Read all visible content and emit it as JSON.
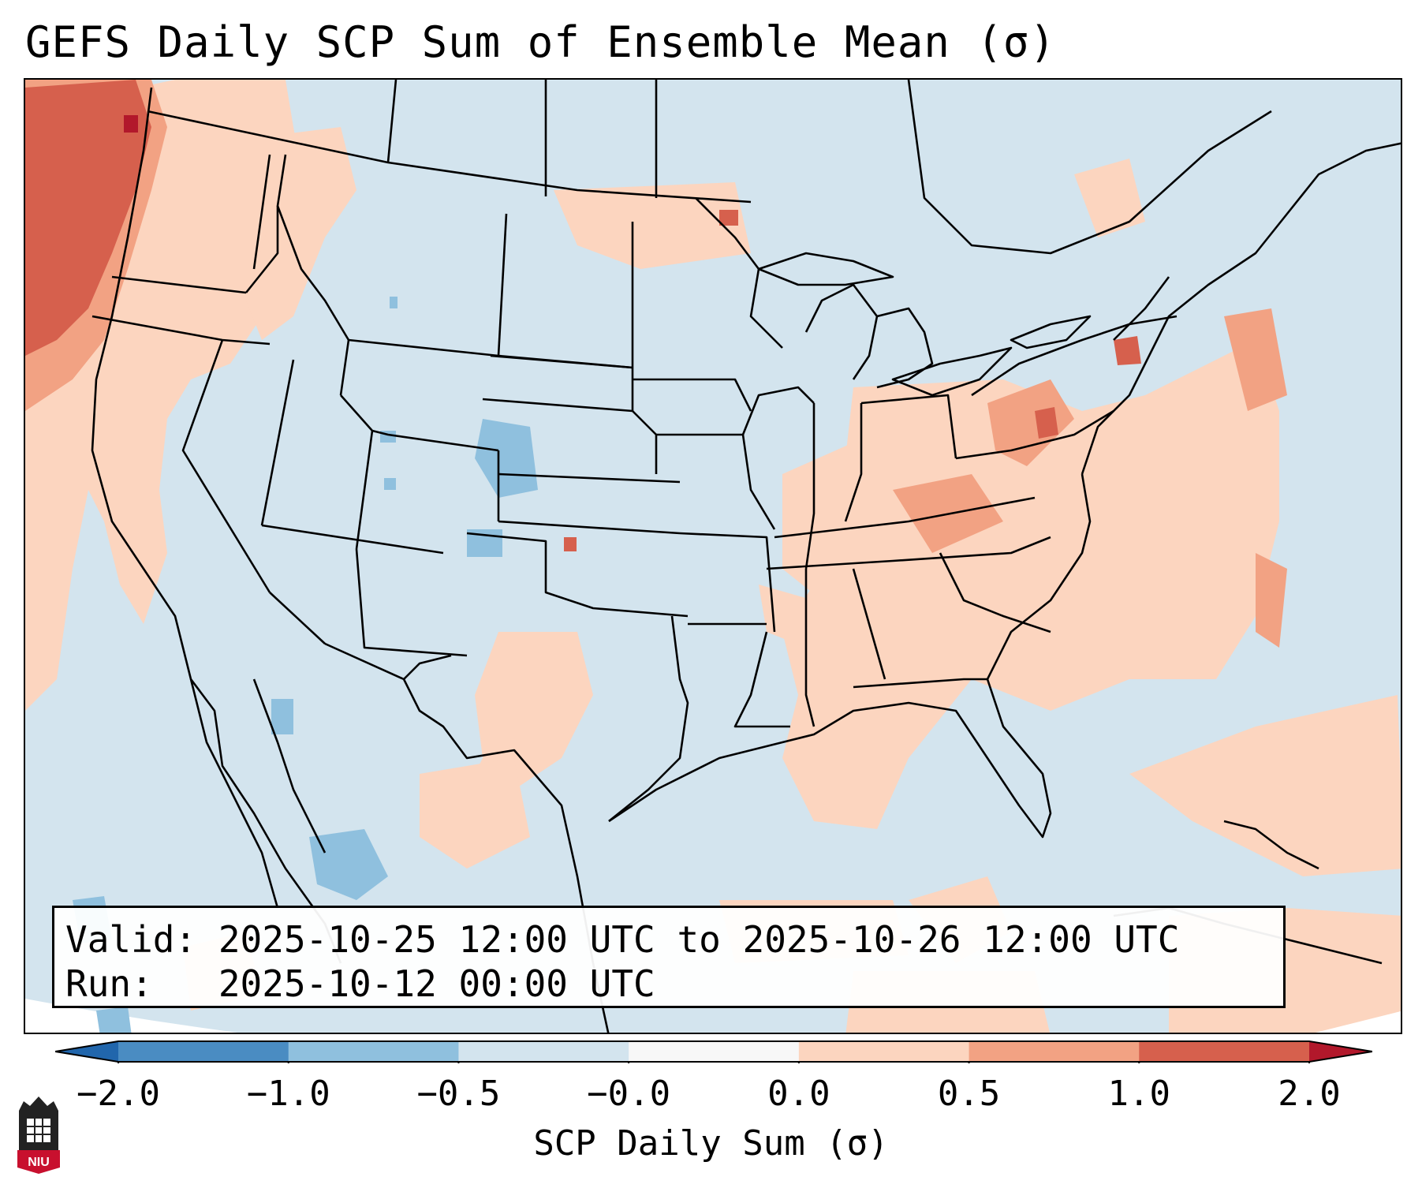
{
  "title": "GEFS Daily SCP Sum of Ensemble Mean (σ)",
  "info": {
    "valid_line": "Valid: 2025-10-25 12:00 UTC to 2025-10-26 12:00 UTC",
    "run_line": "Run:   2025-10-12 00:00 UTC"
  },
  "colorbar": {
    "label": "SCP Daily Sum (σ)",
    "ticks": [
      "−2.0",
      "−1.0",
      "−0.5",
      "−0.0",
      "0.0",
      "0.5",
      "1.0",
      "2.0"
    ],
    "bins": [
      {
        "range": "-2.0 to -1.0",
        "color": "#4a8cc2"
      },
      {
        "range": "-1.0 to -0.5",
        "color": "#8fc0de"
      },
      {
        "range": "-0.5 to -0.0",
        "color": "#d3e4ee"
      },
      {
        "range": "-0.0 to 0.0",
        "color": "#f7f7f7"
      },
      {
        "range": "0.0 to 0.5",
        "color": "#fcd5bf"
      },
      {
        "range": "0.5 to 1.0",
        "color": "#f2a283"
      },
      {
        "range": "1.0 to 2.0",
        "color": "#d6604d"
      }
    ],
    "under_color": "#2166ac",
    "over_color": "#b2182b"
  },
  "map": {
    "ocean_color": "#d3e4ee",
    "outside_projection_color": "#ffffff",
    "border_color": "#000000",
    "regions": [
      {
        "name": "pacific-northwest-coast",
        "level": "1.0 to 2.0"
      },
      {
        "name": "western-us",
        "level": "0.0 to 0.5"
      },
      {
        "name": "colorado-plateau",
        "level": "-1.0 to -0.5"
      },
      {
        "name": "ohio-valley",
        "level": "0.5 to 1.0"
      },
      {
        "name": "southeast-us",
        "level": "0.0 to 0.5"
      },
      {
        "name": "northern-mexico",
        "level": "-1.0 to -0.5"
      }
    ]
  },
  "logo": {
    "text": "NIU",
    "color": "#c8102e"
  }
}
